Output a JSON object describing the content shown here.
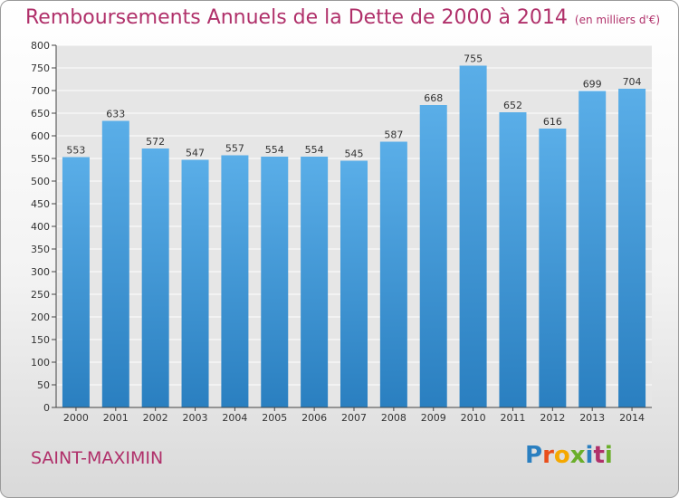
{
  "page": {
    "commune": "SAINT-MAXIMIN",
    "logo_letters": [
      "P",
      "r",
      "o",
      "x",
      "i",
      "t",
      "i"
    ]
  },
  "chart_data": {
    "type": "bar",
    "title": "Remboursements Annuels de la Dette de 2000 à 2014",
    "unit_note": "(en milliers d'€)",
    "xlabel": "",
    "ylabel": "",
    "categories": [
      "2000",
      "2001",
      "2002",
      "2003",
      "2004",
      "2005",
      "2006",
      "2007",
      "2008",
      "2009",
      "2010",
      "2011",
      "2012",
      "2013",
      "2014"
    ],
    "values": [
      553,
      633,
      572,
      547,
      557,
      554,
      554,
      545,
      587,
      668,
      755,
      652,
      616,
      699,
      704
    ],
    "ylim": [
      0,
      800
    ],
    "yticks": [
      0,
      50,
      100,
      150,
      200,
      250,
      300,
      350,
      400,
      450,
      500,
      550,
      600,
      650,
      700,
      750,
      800
    ],
    "grid": true,
    "bar_color_top": "#5aaee8",
    "bar_color_bottom": "#2a7fc0",
    "title_color": "#b0306a",
    "logo_colors": [
      "#2a7fc0",
      "#e94e1b",
      "#f5a800",
      "#6aae2a",
      "#2a7fc0",
      "#b0306a",
      "#6aae2a"
    ]
  }
}
